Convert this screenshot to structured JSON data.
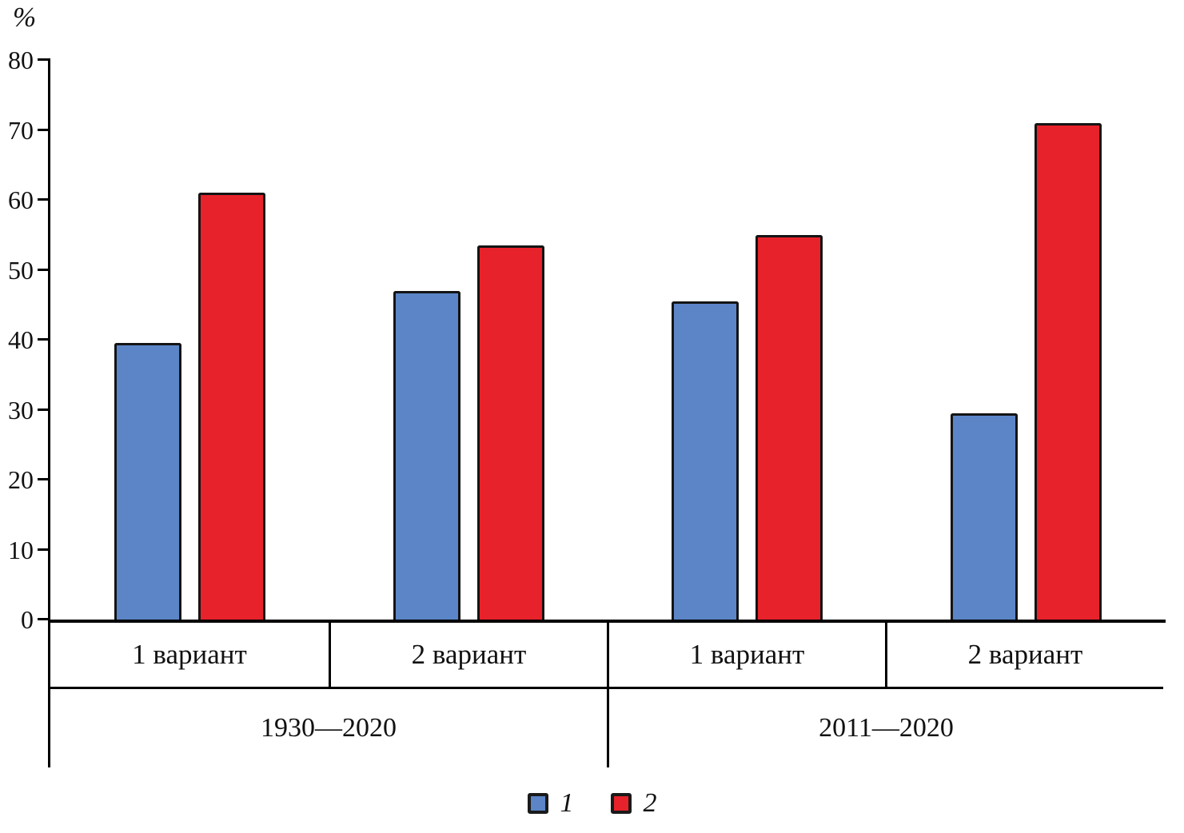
{
  "chart_data": {
    "type": "bar",
    "title": "",
    "ylabel": "%",
    "xlabel": "",
    "ylim": [
      0,
      80
    ],
    "yticks": [
      0,
      10,
      20,
      30,
      40,
      50,
      60,
      70,
      80
    ],
    "grid": false,
    "legend_position": "bottom",
    "group_labels": [
      "1 вариант",
      "2 вариант",
      "1 вариант",
      "2 вариант"
    ],
    "period_labels": [
      "1930—2020",
      "2011—2020"
    ],
    "series": [
      {
        "name": "1",
        "color": "#5b85c7",
        "values": [
          39.5,
          47,
          45.5,
          29.5
        ]
      },
      {
        "name": "2",
        "color": "#e8222a",
        "values": [
          61,
          53.5,
          55,
          71
        ]
      }
    ],
    "legend": [
      {
        "label": "1",
        "color": "#5b85c7"
      },
      {
        "label": "2",
        "color": "#e8222a"
      }
    ]
  }
}
